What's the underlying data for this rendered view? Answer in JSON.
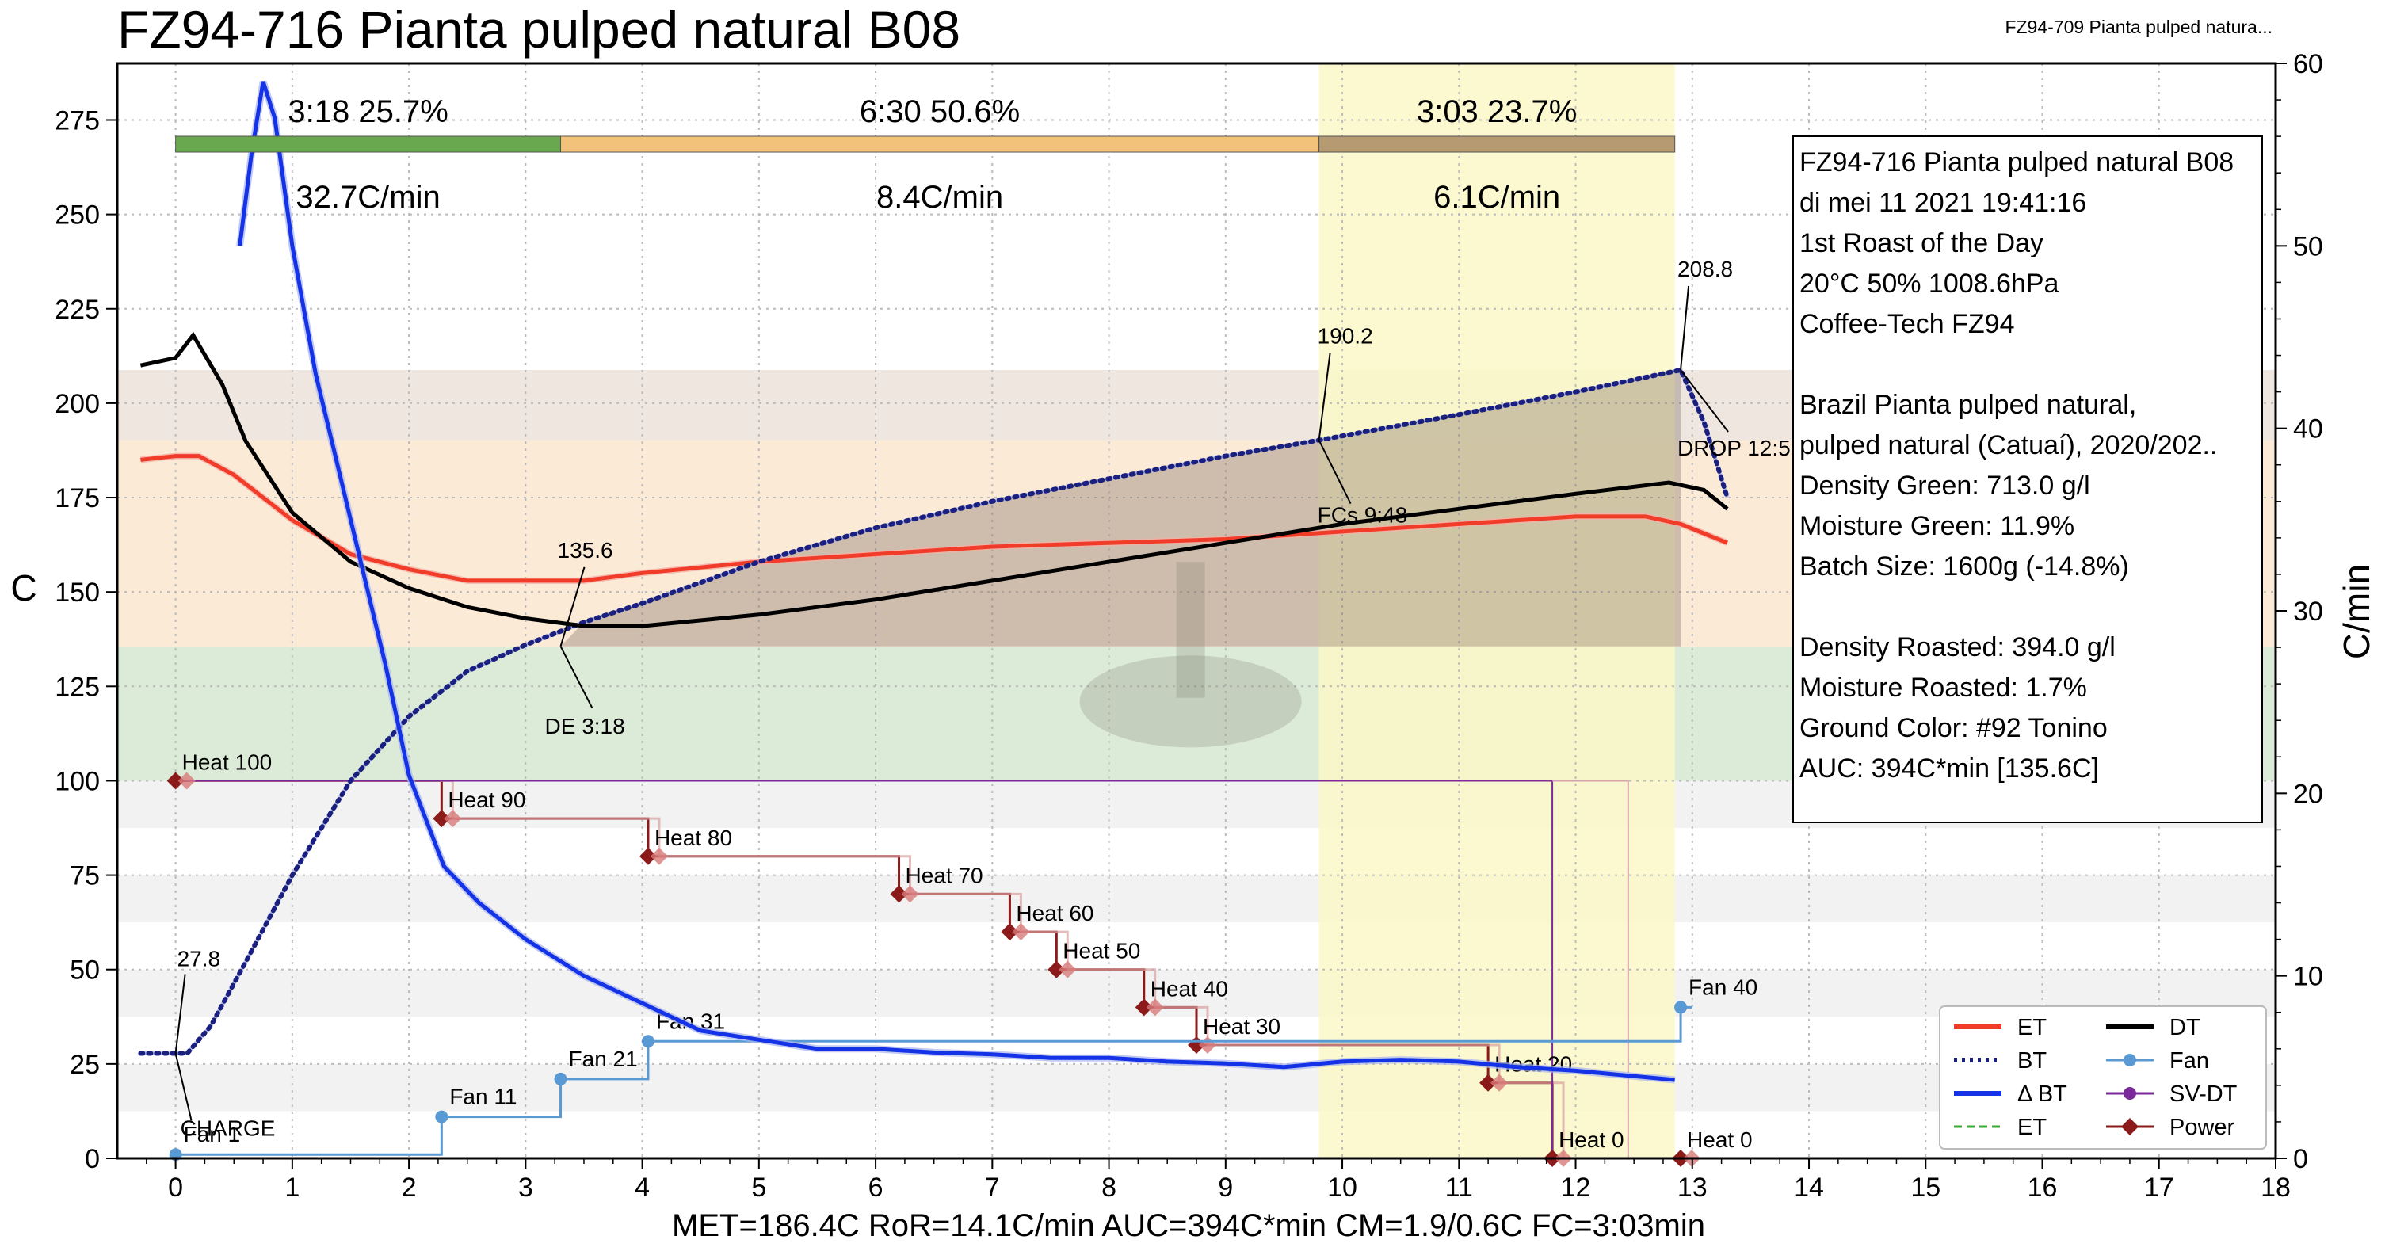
{
  "header": {
    "title": "FZ94-716 Pianta pulped natural B08",
    "background_profile": "FZ94-709 Pianta pulped natura..."
  },
  "footer": {
    "stats": "MET=186.4C   RoR=14.1C/min   AUC=394C*min   CM=1.9/0.6C   FC=3:03min"
  },
  "colors": {
    "et": "#f03c28",
    "bt": "#1a2080",
    "delta_bt": "#1432e6",
    "dt": "#000000",
    "fan": "#5a9ad4",
    "sv_dt": "#7a2a9a",
    "power": "#8b1a1a",
    "drying": "#6aa84f",
    "maillard": "#f3b55c",
    "development": "#a07b5a",
    "fc_window": "#fbf8c8"
  },
  "phases": [
    {
      "time": "3:18",
      "pct": "25.7%",
      "ror": "32.7C/min",
      "x0": 0,
      "x1": 3.3,
      "color": "#6aa84f"
    },
    {
      "time": "6:30",
      "pct": "50.6%",
      "ror": "8.4C/min",
      "x0": 3.3,
      "x1": 9.8,
      "color": "#f3c27a"
    },
    {
      "time": "3:03",
      "pct": "23.7%",
      "ror": "6.1C/min",
      "x0": 9.8,
      "x1": 12.85,
      "color": "#b59a72"
    }
  ],
  "annotations": {
    "charge_temp": "27.8",
    "charge": "CHARGE",
    "tp_temp": "135.6",
    "de": "DE 3:18",
    "fcs_temp": "190.2",
    "fcs": "FCs 9:48",
    "drop_temp": "208.8",
    "drop": "DROP 12:5"
  },
  "events": {
    "heat": [
      {
        "label": "Heat 100",
        "x": 0,
        "y": 100
      },
      {
        "label": "Heat 90",
        "x": 2.28,
        "y": 90
      },
      {
        "label": "Heat 80",
        "x": 4.05,
        "y": 80
      },
      {
        "label": "Heat 70",
        "x": 6.2,
        "y": 70
      },
      {
        "label": "Heat 60",
        "x": 7.15,
        "y": 60
      },
      {
        "label": "Heat 50",
        "x": 7.55,
        "y": 50
      },
      {
        "label": "Heat 40",
        "x": 8.3,
        "y": 40
      },
      {
        "label": "Heat 30",
        "x": 8.75,
        "y": 30
      },
      {
        "label": "Heat 20",
        "x": 11.25,
        "y": 20
      },
      {
        "label": "Heat 0",
        "x": 11.8,
        "y": 0
      },
      {
        "label": "Heat 0",
        "x": 12.9,
        "y": 0
      }
    ],
    "fan": [
      {
        "label": "Fan 1",
        "x": 0,
        "y": 1
      },
      {
        "label": "Fan 11",
        "x": 2.28,
        "y": 11
      },
      {
        "label": "Fan 21",
        "x": 3.3,
        "y": 21
      },
      {
        "label": "Fan 31",
        "x": 4.05,
        "y": 31
      },
      {
        "label": "Fan 40",
        "x": 12.9,
        "y": 40
      }
    ]
  },
  "info_box": {
    "lines": [
      "FZ94-716 Pianta pulped natural B08",
      "di mei 11 2021 19:41:16",
      "1st Roast of the Day",
      "20°C  50%  1008.6hPa",
      "Coffee-Tech FZ94",
      "",
      "Brazil Pianta pulped natural,",
      "  pulped natural (Catuaí), 2020/202..",
      "Density Green: 713.0 g/l",
      "Moisture Green: 11.9%",
      "Batch Size: 1600g (-14.8%)",
      "",
      "Density Roasted: 394.0 g/l",
      "Moisture Roasted: 1.7%",
      "Ground Color: #92 Tonino",
      "AUC: 394C*min [135.6C]"
    ]
  },
  "legend": {
    "left": [
      {
        "label": "ET",
        "color": "#f03c28",
        "style": "solid"
      },
      {
        "label": "BT",
        "color": "#1a2080",
        "style": "dotted"
      },
      {
        "label": "Δ BT",
        "color": "#1432e6",
        "style": "solid"
      },
      {
        "label": "ET",
        "color": "#3aa83a",
        "style": "dashed"
      }
    ],
    "right": [
      {
        "label": "DT",
        "color": "#000000",
        "style": "solid"
      },
      {
        "label": "Fan",
        "color": "#5a9ad4",
        "style": "marker"
      },
      {
        "label": "SV-DT",
        "color": "#7a2a9a",
        "style": "marker"
      },
      {
        "label": "Power",
        "color": "#8b1a1a",
        "style": "diamond"
      }
    ]
  },
  "chart_data": {
    "type": "line",
    "xlim": [
      -0.5,
      18
    ],
    "ylim": [
      0,
      290
    ],
    "y2lim": [
      0,
      60
    ],
    "xlabel": "",
    "ylabel": "C",
    "y2label": "C/min",
    "x_ticks": [
      0,
      1,
      2,
      3,
      4,
      5,
      6,
      7,
      8,
      9,
      10,
      11,
      12,
      13,
      14,
      15,
      16,
      17,
      18
    ],
    "y_ticks": [
      0,
      25,
      50,
      75,
      100,
      125,
      150,
      175,
      200,
      225,
      250,
      275
    ],
    "y2_ticks": [
      0,
      10,
      20,
      30,
      40,
      50,
      60
    ],
    "grid": true,
    "legend_position": "bottom-right",
    "series": [
      {
        "name": "ET",
        "axis": "left",
        "x": [
          -0.3,
          0,
          0.2,
          0.5,
          1,
          1.5,
          2,
          2.5,
          3,
          3.5,
          4,
          5,
          6,
          7,
          8,
          9,
          10,
          11,
          12,
          12.6,
          12.9,
          13.3
        ],
        "y": [
          185,
          186,
          186,
          181,
          169,
          160,
          156,
          153,
          153,
          153,
          155,
          158,
          160,
          162,
          163,
          164,
          166,
          168,
          170,
          170,
          168,
          163
        ]
      },
      {
        "name": "BT",
        "axis": "left",
        "x": [
          -0.3,
          0,
          0.1,
          0.3,
          0.6,
          1,
          1.5,
          2,
          2.5,
          3,
          3.5,
          4,
          5,
          6,
          7,
          8,
          9,
          9.8,
          11,
          12,
          12.9,
          13.1,
          13.3
        ],
        "y": [
          27.8,
          27.8,
          27.8,
          35,
          52,
          75,
          100,
          117,
          129,
          136,
          142,
          147,
          158,
          167,
          174,
          180,
          186,
          190.2,
          197,
          203,
          208.8,
          195,
          175
        ]
      },
      {
        "name": "DT",
        "axis": "left",
        "x": [
          -0.3,
          0,
          0.15,
          0.4,
          0.6,
          1,
          1.5,
          2,
          2.5,
          3,
          3.5,
          4,
          5,
          6,
          7,
          8,
          9,
          10,
          11,
          12,
          12.8,
          13.1,
          13.3
        ],
        "y": [
          210,
          212,
          218,
          205,
          190,
          171,
          158,
          151,
          146,
          143,
          141,
          141,
          144,
          148,
          153,
          158,
          163,
          168,
          172,
          176,
          179,
          177,
          172
        ]
      },
      {
        "name": "Δ BT",
        "axis": "right",
        "x": [
          0.55,
          0.65,
          0.75,
          0.85,
          1,
          1.2,
          1.5,
          1.8,
          2,
          2.3,
          2.6,
          3,
          3.5,
          4,
          4.5,
          5,
          5.5,
          6,
          6.5,
          7,
          7.5,
          8,
          8.5,
          9,
          9.5,
          10,
          10.5,
          11,
          11.5,
          12,
          12.5,
          12.85
        ],
        "y": [
          50,
          55,
          59,
          57,
          50,
          43,
          35,
          27,
          21,
          16,
          14,
          12,
          10,
          8.5,
          7,
          6.5,
          6,
          6,
          5.8,
          5.7,
          5.5,
          5.5,
          5.3,
          5.2,
          5,
          5.3,
          5.4,
          5.3,
          5,
          4.8,
          4.5,
          4.3
        ]
      }
    ]
  }
}
